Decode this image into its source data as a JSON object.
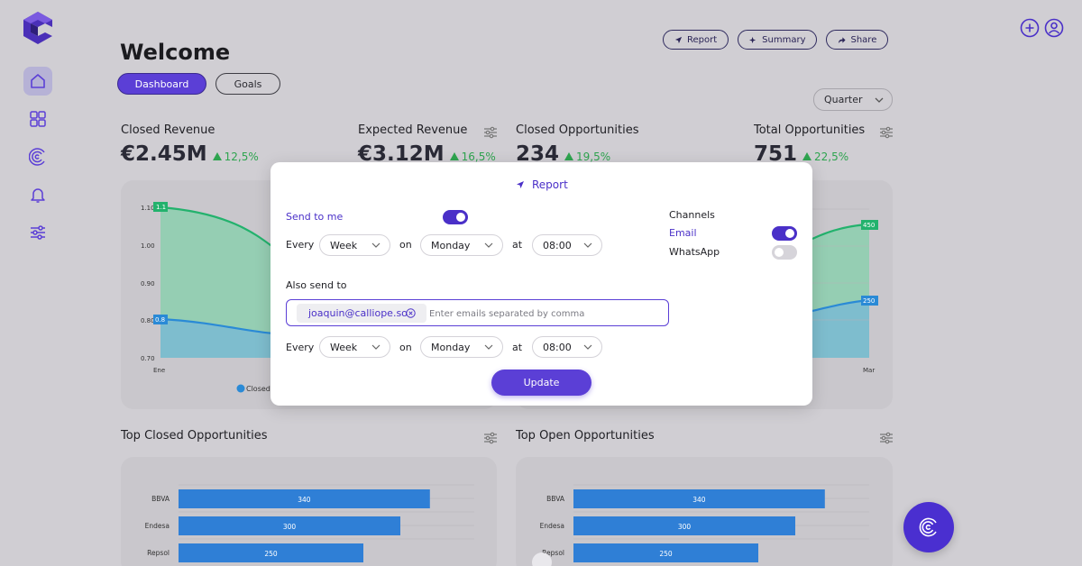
{
  "header": {
    "title": "Welcome",
    "tabs": [
      {
        "label": "Dashboard"
      },
      {
        "label": "Goals"
      }
    ],
    "actions": [
      {
        "label": "Report"
      },
      {
        "label": "Summary"
      },
      {
        "label": "Share"
      }
    ],
    "period": "Quarter"
  },
  "kpis": [
    {
      "title": "Closed Revenue",
      "value": "€2.45M",
      "delta": "12,5%"
    },
    {
      "title": "Expected Revenue",
      "value": "€3.12M",
      "delta": "16,5%"
    },
    {
      "title": "Closed Opportunities",
      "value": "234",
      "delta": "19,5%"
    },
    {
      "title": "Total Opportunities",
      "value": "751",
      "delta": "22,5%"
    }
  ],
  "sections": {
    "top_closed": "Top Closed Opportunities",
    "top_open": "Top Open Opportunities"
  },
  "line_chart_left": {
    "y_ticks": [
      "1.10",
      "1.00",
      "0.90",
      "0.80",
      "0.70"
    ],
    "x_tick_first": "Ene",
    "labels": [
      "1.1",
      "0.8"
    ],
    "legend": "Closed"
  },
  "line_chart_right": {
    "x_tick_last": "Mar",
    "labels": [
      "450",
      "250"
    ]
  },
  "bar_charts": {
    "categories": [
      "BBVA",
      "Endesa",
      "Repsol"
    ],
    "values": [
      340,
      300,
      250
    ],
    "value_labels": [
      "340",
      "300",
      "250"
    ]
  },
  "modal": {
    "title": "Report",
    "send_to_me": "Send to me",
    "send_to_me_on": true,
    "channels_title": "Channels",
    "channels": [
      {
        "label": "Email",
        "on": true
      },
      {
        "label": "WhatsApp",
        "on": false
      }
    ],
    "every_label": "Every",
    "on_label": "on",
    "at_label": "at",
    "schedule_1": {
      "frequency": "Week",
      "day": "Monday",
      "time": "08:00"
    },
    "also_send_to": "Also send to",
    "email_chip": "joaquin@calliope.so",
    "email_placeholder": "Enter emails separated by comma",
    "schedule_2": {
      "frequency": "Week",
      "day": "Monday",
      "time": "08:00"
    },
    "update_label": "Update"
  },
  "colors": {
    "accent": "#5b3fd6",
    "positive": "#2ea44f",
    "bar": "#2f7fd6",
    "green_line": "#23b26d",
    "blue_line": "#2a8ad6"
  }
}
